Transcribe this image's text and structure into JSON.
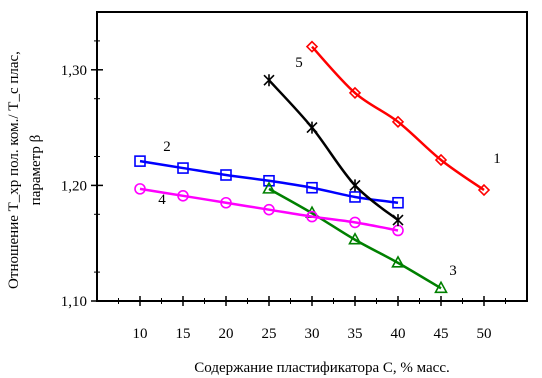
{
  "chart_data": {
    "type": "line",
    "x_label": "Содержание пластификатора С, % масс.",
    "y_label_line1": "Отношение T_xp пол. ком./ T_c плас,",
    "y_label_line2": "параметр β",
    "xlim": [
      5,
      55
    ],
    "ylim": [
      1.1,
      1.35
    ],
    "x_ticks": [
      10,
      15,
      20,
      25,
      30,
      35,
      40,
      45,
      50
    ],
    "x_tick_labels": [
      "10",
      "15",
      "20",
      "25",
      "30",
      "35",
      "40",
      "45",
      "50"
    ],
    "y_ticks": [
      1.1,
      1.2,
      1.3
    ],
    "y_tick_labels": [
      "1,10",
      "1,20",
      "1,30"
    ],
    "grid": false,
    "legend": "none",
    "series": [
      {
        "name": "1",
        "color": "#ff0000",
        "marker": "diamond",
        "x": [
          30,
          35,
          40,
          45,
          50
        ],
        "y": [
          1.32,
          1.28,
          1.255,
          1.222,
          1.196
        ]
      },
      {
        "name": "2",
        "color": "#0000ff",
        "marker": "square",
        "x": [
          10,
          15,
          20,
          25,
          30,
          35,
          40
        ],
        "y": [
          1.221,
          1.215,
          1.209,
          1.204,
          1.198,
          1.19,
          1.185
        ]
      },
      {
        "name": "3",
        "color": "#008000",
        "marker": "triangle",
        "x": [
          25,
          30,
          35,
          40,
          45
        ],
        "y": [
          1.197,
          1.176,
          1.153,
          1.133,
          1.111
        ]
      },
      {
        "name": "4",
        "color": "#ff00ff",
        "marker": "circle",
        "x": [
          10,
          15,
          20,
          25,
          30,
          35,
          40
        ],
        "y": [
          1.197,
          1.191,
          1.185,
          1.179,
          1.173,
          1.168,
          1.161
        ]
      },
      {
        "name": "5",
        "color": "#000000",
        "marker": "star",
        "x": [
          25,
          30,
          35,
          40
        ],
        "y": [
          1.291,
          1.25,
          1.2,
          1.17
        ]
      }
    ]
  }
}
